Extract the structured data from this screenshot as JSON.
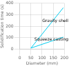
{
  "chart_data": {
    "type": "line",
    "xlabel": "Diameter (mm)",
    "ylabel": "Solidification time (s)",
    "xlim": [
      0,
      200
    ],
    "ylim": [
      0,
      400
    ],
    "xticks": [
      0,
      50,
      100,
      150,
      200
    ],
    "yticks": [
      0,
      100,
      200,
      300,
      400
    ],
    "grid": true,
    "series": [
      {
        "x": [
          50,
          195
        ],
        "values": [
          10,
          360
        ],
        "color": "#00ccee"
      },
      {
        "x": [
          50,
          195
        ],
        "values": [
          10,
          105
        ],
        "color": "#00ccee"
      }
    ],
    "annotations": [
      {
        "text": "Gravity shell",
        "x": 105,
        "y": 230
      },
      {
        "text": "Squeeze casting",
        "x": 95,
        "y": 68
      }
    ]
  }
}
